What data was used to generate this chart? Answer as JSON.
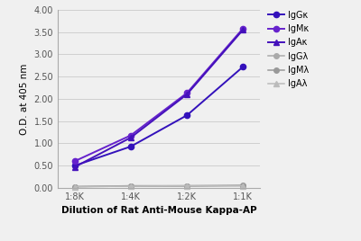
{
  "x_labels": [
    "1:8K",
    "1:4K",
    "1:2K",
    "1:1K"
  ],
  "x_values": [
    0,
    1,
    2,
    3
  ],
  "series": [
    {
      "label": "IgGκ",
      "values": [
        0.5,
        0.93,
        1.63,
        2.72
      ],
      "color": "#3311bb",
      "marker": "o",
      "linewidth": 1.4,
      "markersize": 4.5
    },
    {
      "label": "IgMκ",
      "values": [
        0.6,
        1.18,
        2.13,
        3.58
      ],
      "color": "#6622cc",
      "marker": "o",
      "linewidth": 1.4,
      "markersize": 4.5
    },
    {
      "label": "IgAκ",
      "values": [
        0.47,
        1.13,
        2.1,
        3.55
      ],
      "color": "#4411bb",
      "marker": "^",
      "linewidth": 1.4,
      "markersize": 4.5
    },
    {
      "label": "IgGλ",
      "values": [
        0.03,
        0.04,
        0.04,
        0.05
      ],
      "color": "#aaaaaa",
      "marker": "o",
      "linewidth": 1.1,
      "markersize": 4.0
    },
    {
      "label": "IgMλ",
      "values": [
        0.03,
        0.05,
        0.05,
        0.06
      ],
      "color": "#999999",
      "marker": "o",
      "linewidth": 1.1,
      "markersize": 4.0
    },
    {
      "label": "IgAλ",
      "values": [
        0.03,
        0.04,
        0.05,
        0.05
      ],
      "color": "#bbbbbb",
      "marker": "^",
      "linewidth": 1.1,
      "markersize": 4.0
    }
  ],
  "ylabel": "O.D. at 405 nm",
  "xlabel": "Dilution of Rat Anti-Mouse Kappa-AP",
  "ylim": [
    0.0,
    4.0
  ],
  "yticks": [
    0.0,
    0.5,
    1.0,
    1.5,
    2.0,
    2.5,
    3.0,
    3.5,
    4.0
  ],
  "ytick_labels": [
    "0.00",
    "0.50",
    "1.00",
    "1.50",
    "2.00",
    "2.50",
    "3.00",
    "3.50",
    "4.00"
  ],
  "background_color": "#f0f0f0",
  "plot_bg": "#f0f0f0",
  "grid_color": "#d0d0d0",
  "figsize": [
    4.0,
    2.68
  ],
  "dpi": 100
}
